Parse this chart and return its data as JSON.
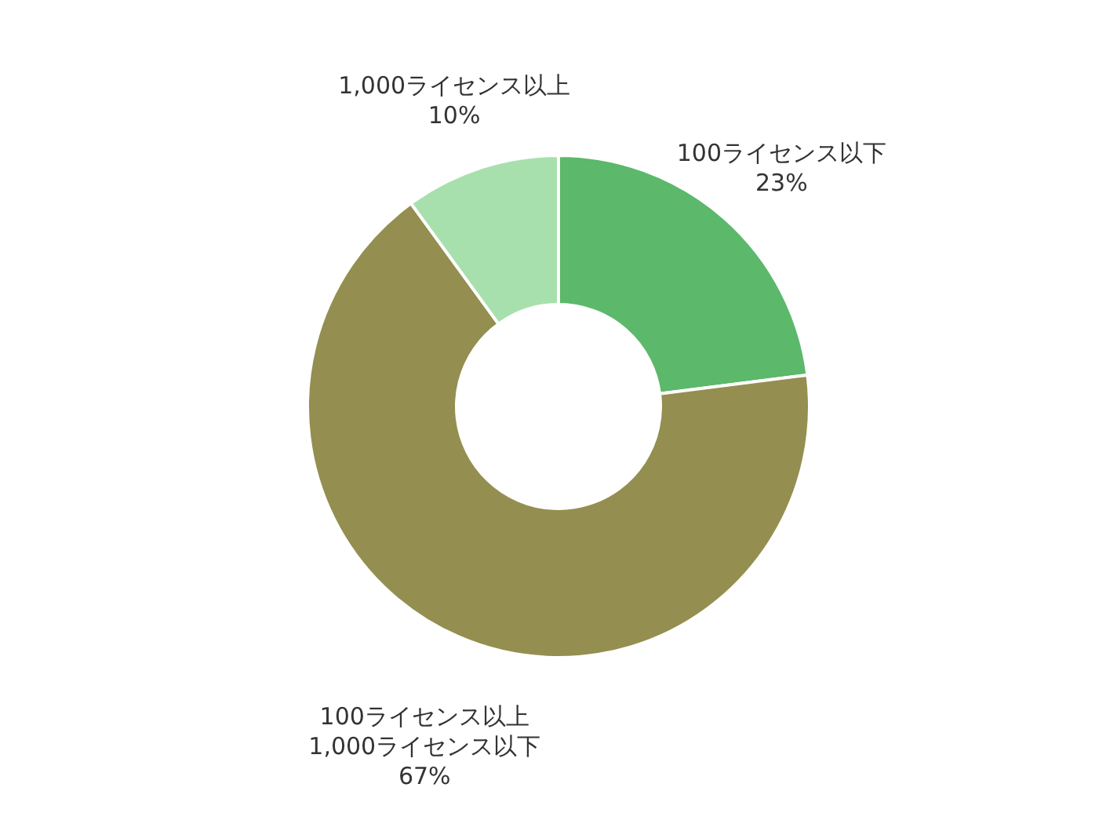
{
  "chart_data": {
    "type": "donut",
    "categories": [
      "100ライセンス以下",
      "100ライセンス以上\n1,000ライセンス以下",
      "1,000ライセンス以上"
    ],
    "values": [
      23,
      67,
      10
    ],
    "colors": [
      "#5cb86a",
      "#948f50",
      "#a8e0ad"
    ],
    "value_labels": [
      "23%",
      "67%",
      "10%"
    ]
  }
}
